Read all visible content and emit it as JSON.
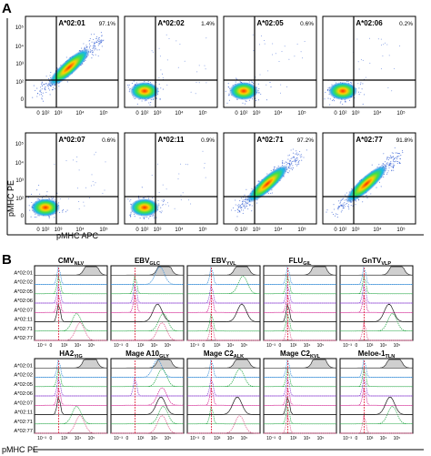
{
  "figure": {
    "panel_a_label": "A",
    "panel_b_label": "B"
  },
  "chart_data": [
    {
      "type": "scatter",
      "panel": "A",
      "ylabel": "pMHC PE",
      "xlabel": "pMHC APC",
      "x_ticks": [
        "0",
        "10²",
        "10³",
        "10⁴",
        "10⁵"
      ],
      "y_ticks": [
        "10⁵",
        "10⁴",
        "10³",
        "10²",
        "0"
      ],
      "plots": [
        {
          "title": "A*02:01",
          "percent": "97.1%",
          "pattern": "diagonal"
        },
        {
          "title": "A*02:02",
          "percent": "1.4%",
          "pattern": "cluster"
        },
        {
          "title": "A*02:05",
          "percent": "0.6%",
          "pattern": "cluster"
        },
        {
          "title": "A*02:06",
          "percent": "0.2%",
          "pattern": "cluster"
        },
        {
          "title": "A*02:07",
          "percent": "0.6%",
          "pattern": "cluster"
        },
        {
          "title": "A*02:11",
          "percent": "0.9%",
          "pattern": "cluster"
        },
        {
          "title": "A*02:71",
          "percent": "97.2%",
          "pattern": "diagonal"
        },
        {
          "title": "A*02:77",
          "percent": "91.8%",
          "pattern": "diagonal"
        }
      ]
    },
    {
      "type": "line",
      "panel": "B",
      "xlabel": "pMHC PE",
      "x_ticks": [
        "10⁻³",
        "0",
        "10³",
        "10⁴",
        "10⁵"
      ],
      "rows": [
        "A*02:01",
        "A*02:02",
        "A*02:05",
        "A*02:06",
        "A*02:07",
        "A*02:11",
        "A*02:71",
        "A*02:77"
      ],
      "row_colors": [
        "#555555",
        "#3a8fd8",
        "#2aa84a",
        "#8a3fd1",
        "#d11f8f",
        "#1a1a1a",
        "#2aa84a",
        "#e05a8c"
      ],
      "histograms": [
        {
          "title": "CMV",
          "sub": "NLV",
          "peaks": [
            3.9,
            1.0,
            1.0,
            1.0,
            1.0,
            1.0,
            2.6,
            2.9
          ]
        },
        {
          "title": "EBV",
          "sub": "GLC",
          "peaks": [
            3.6,
            3.2,
            1.0,
            1.0,
            1.0,
            3.0,
            3.5,
            3.4
          ]
        },
        {
          "title": "EBV",
          "sub": "YVL",
          "peaks": [
            3.7,
            1.0,
            3.8,
            1.0,
            1.0,
            3.7,
            1.0,
            1.0
          ]
        },
        {
          "title": "FLU",
          "sub": "GIL",
          "peaks": [
            3.8,
            1.0,
            1.0,
            1.0,
            1.0,
            1.0,
            1.0,
            1.0
          ]
        },
        {
          "title": "GnTV",
          "sub": "VLP",
          "peaks": [
            3.9,
            1.0,
            1.0,
            1.0,
            1.0,
            3.2,
            3.5,
            1.0
          ]
        },
        {
          "title": "HA2",
          "sub": "YIG",
          "peaks": [
            3.8,
            1.0,
            1.0,
            1.0,
            1.0,
            1.0,
            2.6,
            2.9
          ]
        },
        {
          "title": "Mage A10",
          "sub": "GLY",
          "peaks": [
            3.6,
            3.0,
            3.4,
            1.0,
            3.4,
            3.3,
            3.5,
            3.4
          ]
        },
        {
          "title": "Mage C2",
          "sub": "ALK",
          "peaks": [
            3.7,
            1.0,
            3.5,
            1.0,
            1.0,
            3.3,
            1.0,
            3.5
          ]
        },
        {
          "title": "Mage C2",
          "sub": "KVL",
          "peaks": [
            3.8,
            1.0,
            1.0,
            1.0,
            1.0,
            1.0,
            1.0,
            1.0
          ]
        },
        {
          "title": "Meloe-1",
          "sub": "TLN",
          "peaks": [
            3.7,
            1.0,
            1.0,
            1.0,
            1.0,
            3.3,
            3.5,
            1.0
          ]
        }
      ]
    }
  ]
}
